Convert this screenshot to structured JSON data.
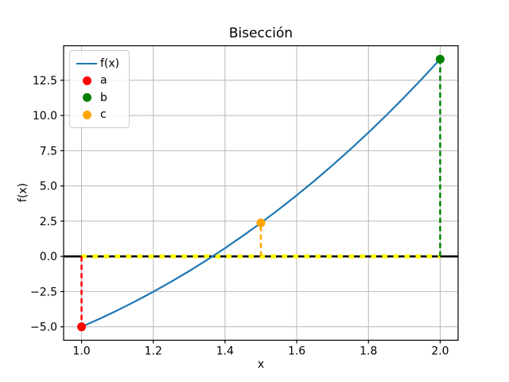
{
  "chart_data": {
    "type": "line",
    "title": "Bisección",
    "xlabel": "x",
    "ylabel": "f(x)",
    "xlim": [
      0.95,
      2.05
    ],
    "ylim": [
      -5.95,
      14.95
    ],
    "xticks": [
      1.0,
      1.2,
      1.4,
      1.6,
      1.8,
      2.0
    ],
    "xtick_labels": [
      "1.0",
      "1.2",
      "1.4",
      "1.6",
      "1.8",
      "2.0"
    ],
    "yticks": [
      -5.0,
      -2.5,
      0.0,
      2.5,
      5.0,
      7.5,
      10.0,
      12.5
    ],
    "ytick_labels": [
      "−5.0",
      "−2.5",
      "0.0",
      "2.5",
      "5.0",
      "7.5",
      "10.0",
      "12.5"
    ],
    "grid": true,
    "grid_color": "#b9b9b9",
    "frame_color": "#000000",
    "series": [
      {
        "name": "f(x)",
        "color": "#1f77b4",
        "x": [
          1.0,
          1.05,
          1.1,
          1.15,
          1.2,
          1.25,
          1.3,
          1.35,
          1.4,
          1.45,
          1.5,
          1.55,
          1.6,
          1.65,
          1.7,
          1.75,
          1.8,
          1.85,
          1.9,
          1.95,
          2.0
        ],
        "y": [
          -5.0,
          -4.432,
          -3.829,
          -3.189,
          -2.512,
          -1.797,
          -1.043,
          -0.25,
          0.584,
          1.459,
          2.375,
          3.334,
          4.336,
          5.382,
          6.473,
          7.609,
          8.792,
          10.022,
          11.299,
          12.625,
          14.0
        ]
      }
    ],
    "points": [
      {
        "name": "a",
        "x": 1.0,
        "y": -5.0,
        "color": "#ff0000"
      },
      {
        "name": "b",
        "x": 2.0,
        "y": 14.0,
        "color": "#008000"
      },
      {
        "name": "c",
        "x": 1.5,
        "y": 2.375,
        "color": "#ffa500"
      }
    ],
    "vlines": [
      {
        "name": "a",
        "x": 1.0,
        "y0": 0.0,
        "y1": -5.0,
        "color": "#ff0000"
      },
      {
        "name": "b",
        "x": 2.0,
        "y0": 0.0,
        "y1": 14.0,
        "color": "#008000"
      },
      {
        "name": "c",
        "x": 1.5,
        "y0": 0.0,
        "y1": 2.375,
        "color": "#ffa500"
      }
    ],
    "hlines": [
      {
        "name": "zero-line",
        "y": 0.0,
        "x0": 0.95,
        "x1": 2.05,
        "color": "#000000",
        "style": "solid",
        "width": 2.6
      },
      {
        "name": "interval-line",
        "y": 0.0,
        "x0": 1.0,
        "x1": 2.0,
        "color": "#ffff00",
        "style": "dashed",
        "width": 5
      }
    ],
    "legend": {
      "position": "upper-left",
      "items": [
        {
          "label": "f(x)",
          "marker": "line",
          "color": "#1f77b4"
        },
        {
          "label": "a",
          "marker": "dot",
          "color": "#ff0000"
        },
        {
          "label": "b",
          "marker": "dot",
          "color": "#008000"
        },
        {
          "label": "c",
          "marker": "dot",
          "color": "#ffa500"
        }
      ]
    }
  }
}
